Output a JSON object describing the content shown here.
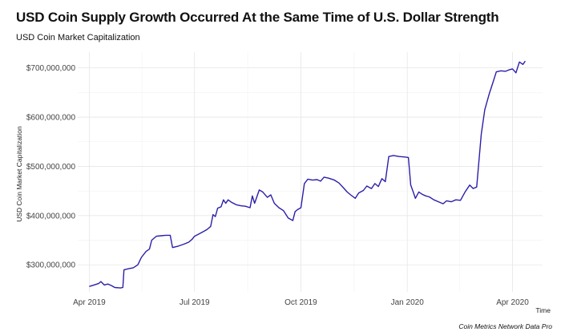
{
  "chart_data": {
    "type": "line",
    "title": "USD Coin Supply Growth Occurred At the Same Time of U.S. Dollar Strength",
    "subtitle": "USD Coin Market Capitalization",
    "xlabel": "Time",
    "ylabel": "USD Coin Market Capitalization",
    "caption": "Coin Metrics Network Data Pro",
    "grid": true,
    "line_color": "#2b1fa8",
    "xlim": [
      "2019-03-22",
      "2020-04-27"
    ],
    "ylim": [
      245000000,
      732000000
    ],
    "x_ticks": [
      {
        "date": "2019-04-01",
        "label": "Apr 2019"
      },
      {
        "date": "2019-07-01",
        "label": "Jul 2019"
      },
      {
        "date": "2019-10-01",
        "label": "Oct 2019"
      },
      {
        "date": "2020-01-01",
        "label": "Jan 2020"
      },
      {
        "date": "2020-04-01",
        "label": "Apr 2020"
      }
    ],
    "y_ticks": [
      {
        "value": 300000000,
        "label": "$300,000,000"
      },
      {
        "value": 400000000,
        "label": "$400,000,000"
      },
      {
        "value": 500000000,
        "label": "$500,000,000"
      },
      {
        "value": 600000000,
        "label": "$600,000,000"
      },
      {
        "value": 700000000,
        "label": "$700,000,000"
      }
    ],
    "series": [
      {
        "points": [
          [
            "2019-04-01",
            256000000
          ],
          [
            "2019-04-05",
            259000000
          ],
          [
            "2019-04-09",
            262000000
          ],
          [
            "2019-04-11",
            266000000
          ],
          [
            "2019-04-14",
            259000000
          ],
          [
            "2019-04-17",
            261000000
          ],
          [
            "2019-04-20",
            258000000
          ],
          [
            "2019-04-23",
            254000000
          ],
          [
            "2019-04-28",
            253000000
          ],
          [
            "2019-04-30",
            254000000
          ],
          [
            "2019-05-01",
            290000000
          ],
          [
            "2019-05-05",
            292000000
          ],
          [
            "2019-05-09",
            294000000
          ],
          [
            "2019-05-13",
            300000000
          ],
          [
            "2019-05-16",
            315000000
          ],
          [
            "2019-05-20",
            327000000
          ],
          [
            "2019-05-23",
            332000000
          ],
          [
            "2019-05-25",
            350000000
          ],
          [
            "2019-05-29",
            358000000
          ],
          [
            "2019-06-02",
            359000000
          ],
          [
            "2019-06-06",
            360000000
          ],
          [
            "2019-06-10",
            360000000
          ],
          [
            "2019-06-12",
            335000000
          ],
          [
            "2019-06-17",
            338000000
          ],
          [
            "2019-06-22",
            342000000
          ],
          [
            "2019-06-26",
            346000000
          ],
          [
            "2019-06-29",
            352000000
          ],
          [
            "2019-07-01",
            358000000
          ],
          [
            "2019-07-05",
            363000000
          ],
          [
            "2019-07-09",
            368000000
          ],
          [
            "2019-07-12",
            372000000
          ],
          [
            "2019-07-15",
            378000000
          ],
          [
            "2019-07-17",
            402000000
          ],
          [
            "2019-07-19",
            398000000
          ],
          [
            "2019-07-21",
            415000000
          ],
          [
            "2019-07-24",
            418000000
          ],
          [
            "2019-07-26",
            432000000
          ],
          [
            "2019-07-28",
            425000000
          ],
          [
            "2019-07-30",
            432000000
          ],
          [
            "2019-08-02",
            427000000
          ],
          [
            "2019-08-06",
            422000000
          ],
          [
            "2019-08-10",
            420000000
          ],
          [
            "2019-08-14",
            419000000
          ],
          [
            "2019-08-18",
            416000000
          ],
          [
            "2019-08-20",
            440000000
          ],
          [
            "2019-08-22",
            425000000
          ],
          [
            "2019-08-26",
            452000000
          ],
          [
            "2019-08-29",
            448000000
          ],
          [
            "2019-09-02",
            437000000
          ],
          [
            "2019-09-05",
            442000000
          ],
          [
            "2019-09-08",
            425000000
          ],
          [
            "2019-09-12",
            416000000
          ],
          [
            "2019-09-16",
            410000000
          ],
          [
            "2019-09-20",
            395000000
          ],
          [
            "2019-09-24",
            390000000
          ],
          [
            "2019-09-26",
            408000000
          ],
          [
            "2019-09-28",
            412000000
          ],
          [
            "2019-10-01",
            416000000
          ],
          [
            "2019-10-04",
            465000000
          ],
          [
            "2019-10-07",
            474000000
          ],
          [
            "2019-10-11",
            472000000
          ],
          [
            "2019-10-15",
            473000000
          ],
          [
            "2019-10-18",
            470000000
          ],
          [
            "2019-10-21",
            478000000
          ],
          [
            "2019-10-25",
            476000000
          ],
          [
            "2019-10-30",
            472000000
          ],
          [
            "2019-11-03",
            466000000
          ],
          [
            "2019-11-07",
            456000000
          ],
          [
            "2019-11-10",
            448000000
          ],
          [
            "2019-11-13",
            442000000
          ],
          [
            "2019-11-17",
            435000000
          ],
          [
            "2019-11-20",
            446000000
          ],
          [
            "2019-11-24",
            451000000
          ],
          [
            "2019-11-27",
            460000000
          ],
          [
            "2019-12-01",
            455000000
          ],
          [
            "2019-12-04",
            465000000
          ],
          [
            "2019-12-07",
            459000000
          ],
          [
            "2019-12-10",
            475000000
          ],
          [
            "2019-12-13",
            469000000
          ],
          [
            "2019-12-16",
            520000000
          ],
          [
            "2019-12-20",
            522000000
          ],
          [
            "2019-12-25",
            520000000
          ],
          [
            "2019-12-30",
            519000000
          ],
          [
            "2020-01-02",
            518000000
          ],
          [
            "2020-01-04",
            462000000
          ],
          [
            "2020-01-06",
            449000000
          ],
          [
            "2020-01-08",
            435000000
          ],
          [
            "2020-01-11",
            448000000
          ],
          [
            "2020-01-14",
            443000000
          ],
          [
            "2020-01-17",
            440000000
          ],
          [
            "2020-01-20",
            438000000
          ],
          [
            "2020-01-24",
            432000000
          ],
          [
            "2020-01-28",
            428000000
          ],
          [
            "2020-02-01",
            424000000
          ],
          [
            "2020-02-04",
            430000000
          ],
          [
            "2020-02-08",
            428000000
          ],
          [
            "2020-02-12",
            432000000
          ],
          [
            "2020-02-16",
            431000000
          ],
          [
            "2020-02-20",
            448000000
          ],
          [
            "2020-02-24",
            462000000
          ],
          [
            "2020-02-27",
            455000000
          ],
          [
            "2020-03-01",
            458000000
          ],
          [
            "2020-03-05",
            565000000
          ],
          [
            "2020-03-08",
            615000000
          ],
          [
            "2020-03-12",
            648000000
          ],
          [
            "2020-03-15",
            670000000
          ],
          [
            "2020-03-18",
            692000000
          ],
          [
            "2020-03-22",
            694000000
          ],
          [
            "2020-03-26",
            693000000
          ],
          [
            "2020-03-29",
            696000000
          ],
          [
            "2020-04-01",
            698000000
          ],
          [
            "2020-04-04",
            690000000
          ],
          [
            "2020-04-07",
            712000000
          ],
          [
            "2020-04-10",
            707000000
          ],
          [
            "2020-04-12",
            714000000
          ]
        ]
      }
    ]
  }
}
